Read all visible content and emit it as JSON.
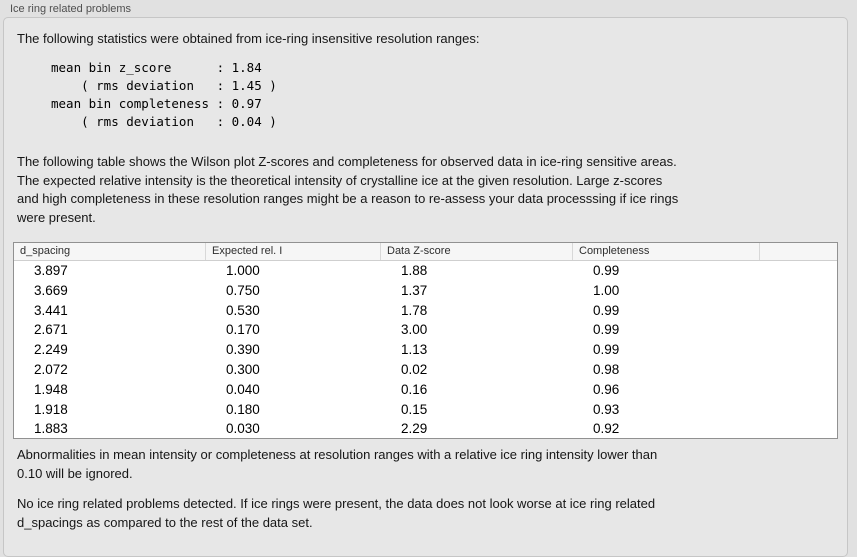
{
  "group": {
    "title": "Ice ring related problems"
  },
  "intro_text": "The following statistics were obtained from ice-ring insensitive resolution ranges:",
  "stats_block": [
    "mean bin z_score      : 1.84",
    "    ( rms deviation   : 1.45 )",
    "mean bin completeness : 0.97",
    "    ( rms deviation   : 0.04 )"
  ],
  "table_intro_lines": [
    "The following table shows the Wilson plot Z-scores and completeness for observed data in ice-ring sensitive areas.",
    "The expected relative intensity is the theoretical intensity of crystalline ice at the given resolution. Large z-scores",
    "and high completeness in these resolution ranges might be a reason to re-assess your data processsing if ice rings",
    "were present."
  ],
  "table": {
    "columns": [
      "d_spacing",
      "Expected rel. I",
      "Data Z-score",
      "Completeness",
      ""
    ],
    "rows": [
      [
        "3.897",
        "1.000",
        "1.88",
        "0.99",
        ""
      ],
      [
        "3.669",
        "0.750",
        "1.37",
        "1.00",
        ""
      ],
      [
        "3.441",
        "0.530",
        "1.78",
        "0.99",
        ""
      ],
      [
        "2.671",
        "0.170",
        "3.00",
        "0.99",
        ""
      ],
      [
        "2.249",
        "0.390",
        "1.13",
        "0.99",
        ""
      ],
      [
        "2.072",
        "0.300",
        "0.02",
        "0.98",
        ""
      ],
      [
        "1.948",
        "0.040",
        "0.16",
        "0.96",
        ""
      ],
      [
        "1.918",
        "0.180",
        "0.15",
        "0.93",
        ""
      ],
      [
        "1.883",
        "0.030",
        "2.29",
        "0.92",
        ""
      ]
    ]
  },
  "note_lines": [
    "Abnormalities in mean intensity or completeness at resolution ranges with a relative ice ring intensity lower than",
    "0.10 will be ignored."
  ],
  "conclusion_lines": [
    "No ice ring related problems detected. If ice rings were present, the data does not look worse at ice ring related",
    "d_spacings as compared to the rest of the data set."
  ]
}
